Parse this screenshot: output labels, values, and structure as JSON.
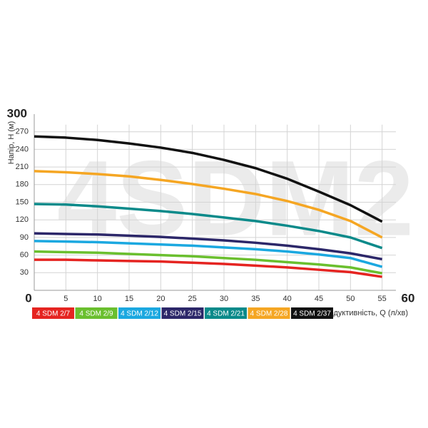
{
  "chart_data": {
    "type": "line",
    "watermark": "4SDM2",
    "y_label": "Напір, H (м)",
    "x_label": "Продуктивність, Q (л/хв)",
    "x": [
      0,
      5,
      10,
      15,
      20,
      25,
      30,
      35,
      40,
      45,
      50,
      55
    ],
    "xlim": [
      0,
      60
    ],
    "xticks": [
      0,
      5,
      10,
      15,
      20,
      25,
      30,
      35,
      40,
      45,
      50,
      55,
      60
    ],
    "ylim": [
      0,
      300
    ],
    "yticks": [
      30,
      60,
      90,
      120,
      150,
      180,
      210,
      240,
      270,
      300
    ],
    "grid": true,
    "series": [
      {
        "name": "4 SDM 2/7",
        "color": "#e52421",
        "values": [
          52,
          52,
          51,
          50,
          49,
          47,
          45,
          42,
          39,
          35,
          31,
          23
        ]
      },
      {
        "name": "4 SDM 2/9",
        "color": "#6abf2e",
        "values": [
          66,
          65,
          64,
          62,
          60,
          58,
          55,
          52,
          48,
          44,
          39,
          29
        ]
      },
      {
        "name": "4 SDM 2/12",
        "color": "#1ba8e0",
        "values": [
          84,
          83,
          82,
          80,
          78,
          76,
          73,
          70,
          66,
          61,
          55,
          40
        ]
      },
      {
        "name": "4 SDM 2/15",
        "color": "#2c2769",
        "values": [
          97,
          96,
          95,
          93,
          91,
          88,
          85,
          81,
          76,
          70,
          63,
          53
        ]
      },
      {
        "name": "4 SDM 2/21",
        "color": "#0b8a8a",
        "values": [
          147,
          146,
          143,
          139,
          135,
          130,
          124,
          118,
          110,
          101,
          90,
          72
        ]
      },
      {
        "name": "4 SDM 2/28",
        "color": "#f5a623",
        "values": [
          203,
          201,
          198,
          194,
          188,
          181,
          173,
          164,
          152,
          137,
          118,
          90
        ]
      },
      {
        "name": "4 SDM 2/37",
        "color": "#111111",
        "values": [
          262,
          260,
          256,
          250,
          243,
          234,
          222,
          208,
          190,
          168,
          145,
          117
        ]
      }
    ]
  }
}
